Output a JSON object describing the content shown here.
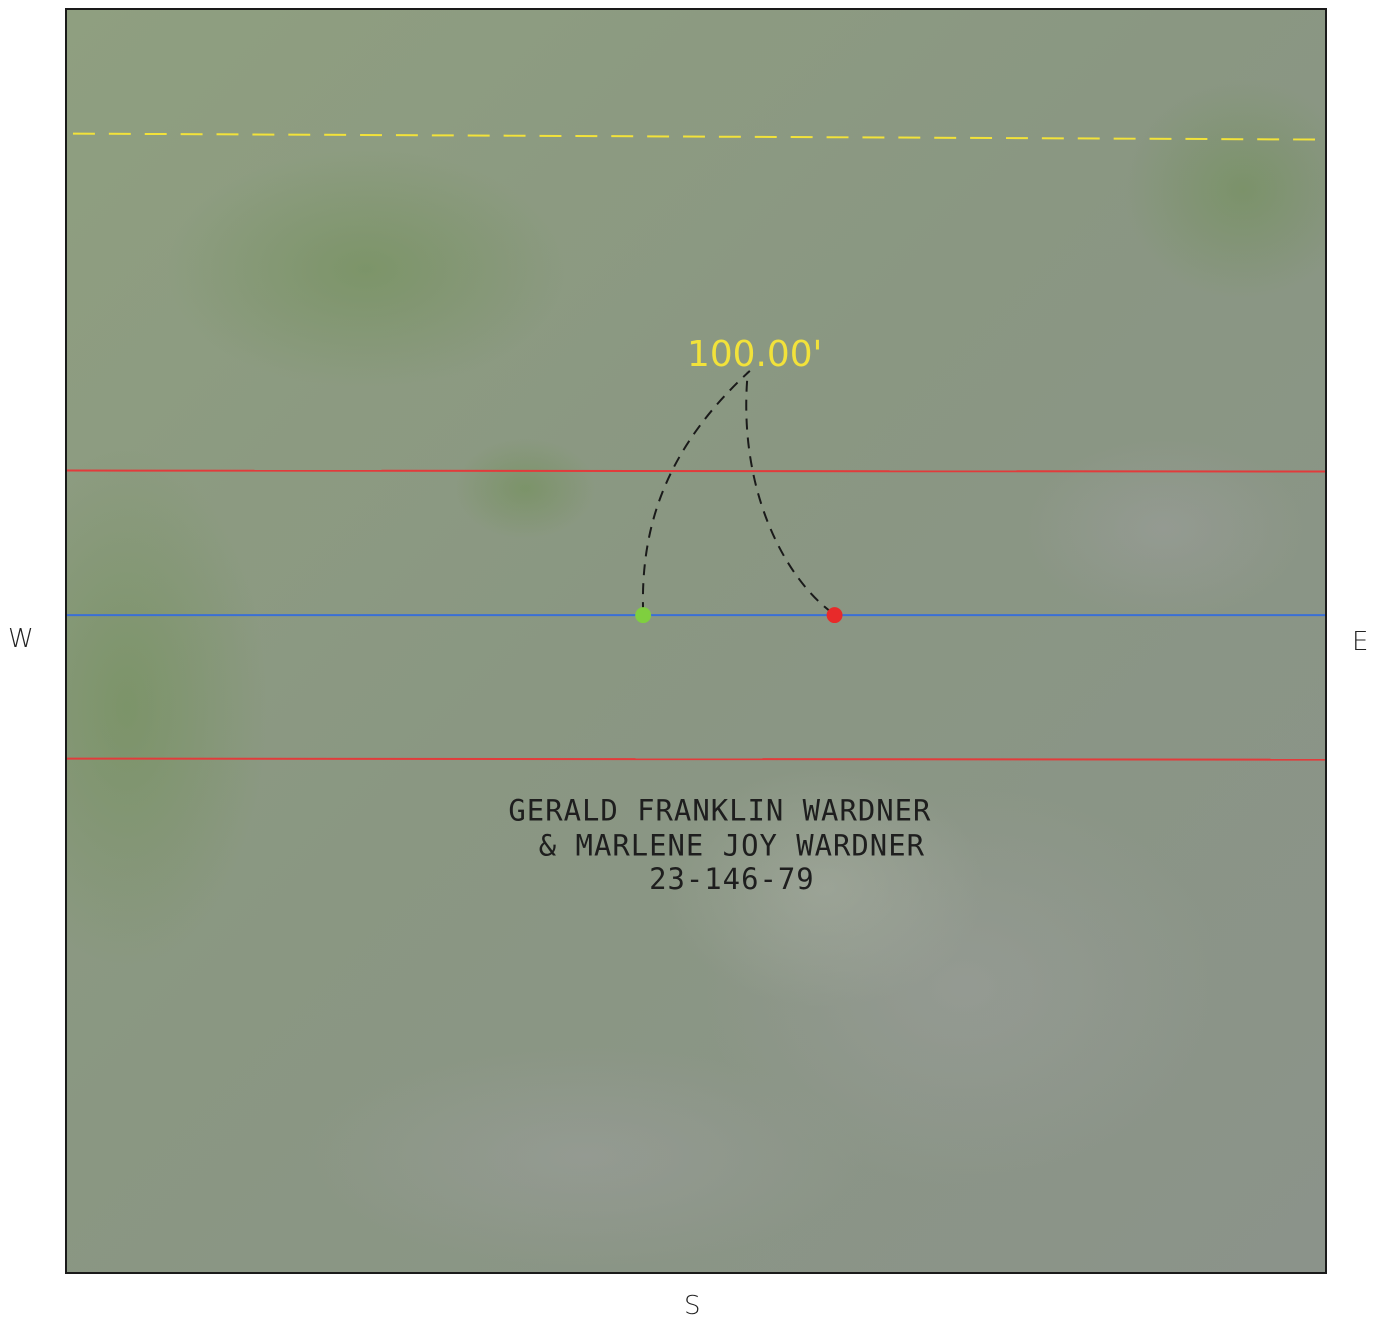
{
  "compass": {
    "west": "W",
    "east": "E",
    "south": "S"
  },
  "dimension_label": "100.00'",
  "parcel": {
    "line1": "GERALD FRANKLIN WARDNER",
    "line2": "& MARLENE JOY WARDNER",
    "line3": "23-146-79"
  },
  "colors": {
    "right_of_way_line": "#f2e23a",
    "boundary_line": "#e23b3b",
    "centerline": "#3a6fd6",
    "start_point": "#7fcf3f",
    "end_point": "#e82a2a",
    "swing_arc": "#1a1a1a",
    "background": "#8c9a7f"
  }
}
